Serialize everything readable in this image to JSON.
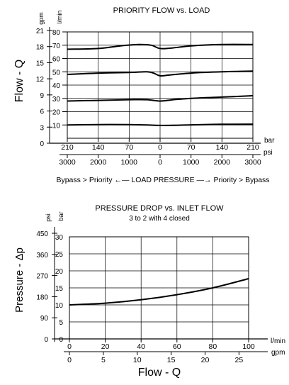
{
  "chart_data": [
    {
      "type": "line",
      "title": "PRIORITY FLOW vs. LOAD",
      "ylabel": "Flow - Q",
      "y_unit_left": "gpm",
      "y_unit_right": "l/min",
      "y_ticks_gpm": [
        "21",
        "18",
        "15",
        "12",
        "9",
        "6",
        "3",
        "0"
      ],
      "y_ticks_lmin": [
        "80",
        "70",
        "60",
        "50",
        "40",
        "30",
        "20",
        "10"
      ],
      "ylim_lmin": [
        0,
        80
      ],
      "x_unit_bar": "bar",
      "x_unit_psi": "psi",
      "x_ticks_bar": [
        "210",
        "140",
        "70",
        "0",
        "70",
        "140",
        "210"
      ],
      "x_ticks_psi": [
        "3000",
        "2000",
        "1000",
        "0",
        "1000",
        "2000",
        "3000"
      ],
      "x": [
        -210,
        -140,
        -70,
        0,
        70,
        140,
        210
      ],
      "xlabel": "Bypass > Priority ←— LOAD PRESSURE —→ Priority > Bypass",
      "grid": true,
      "series": [
        {
          "points": [
            [
              -210,
              67
            ],
            [
              -140,
              67.5
            ],
            [
              -90,
              69.5
            ],
            [
              -50,
              70.5
            ],
            [
              -20,
              70
            ],
            [
              0,
              67.5
            ],
            [
              30,
              68
            ],
            [
              70,
              69.5
            ],
            [
              140,
              70.5
            ],
            [
              210,
              70.5
            ]
          ]
        },
        {
          "points": [
            [
              -210,
              48
            ],
            [
              -140,
              49
            ],
            [
              -70,
              49.5
            ],
            [
              -30,
              50
            ],
            [
              -15,
              49
            ],
            [
              0,
              47
            ],
            [
              20,
              47.5
            ],
            [
              70,
              49
            ],
            [
              140,
              50
            ],
            [
              210,
              50.5
            ]
          ]
        },
        {
          "points": [
            [
              -210,
              28
            ],
            [
              -140,
              28.5
            ],
            [
              -70,
              29
            ],
            [
              -30,
              29
            ],
            [
              0,
              28
            ],
            [
              30,
              29
            ],
            [
              70,
              30
            ],
            [
              140,
              31
            ],
            [
              210,
              32
            ]
          ]
        },
        {
          "points": [
            [
              -210,
              10
            ],
            [
              -140,
              10.3
            ],
            [
              -70,
              10.3
            ],
            [
              -30,
              10
            ],
            [
              0,
              9.6
            ],
            [
              30,
              9.7
            ],
            [
              70,
              10.1
            ],
            [
              140,
              10.5
            ],
            [
              210,
              10.6
            ]
          ]
        }
      ]
    },
    {
      "type": "line",
      "title": "PRESSURE DROP vs. INLET FLOW",
      "subtitle": "3 to 2 with 4 closed",
      "ylabel": "Pressure - Δp",
      "y_unit_left": "psi",
      "y_unit_right": "bar",
      "y_ticks_psi": [
        "450",
        "360",
        "270",
        "180",
        "90",
        "0"
      ],
      "y_ticks_bar": [
        "30",
        "25",
        "20",
        "15",
        "10",
        "5",
        "0"
      ],
      "ylim_bar": [
        0,
        30
      ],
      "xlabel": "Flow - Q",
      "x_unit_lmin": "l/min",
      "x_unit_gpm": "gpm",
      "x_ticks_lmin": [
        "0",
        "20",
        "40",
        "60",
        "80",
        "100"
      ],
      "x_ticks_gpm": [
        "0",
        "5",
        "10",
        "15",
        "20",
        "25"
      ],
      "xlim_lmin": [
        0,
        100
      ],
      "grid": true,
      "series": [
        {
          "points": [
            [
              0,
              10
            ],
            [
              20,
              10.5
            ],
            [
              40,
              11.5
            ],
            [
              60,
              13
            ],
            [
              80,
              15
            ],
            [
              100,
              17.7
            ]
          ]
        }
      ]
    }
  ]
}
